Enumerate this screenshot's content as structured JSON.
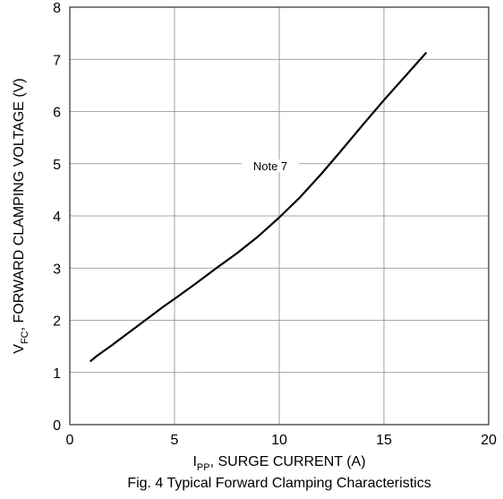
{
  "chart_data": {
    "type": "line",
    "title": "",
    "caption": "Fig. 4 Typical Forward Clamping Characteristics",
    "xlabel": {
      "main": "I",
      "sub": "PP",
      "rest": ",  SURGE CURRENT (A)"
    },
    "ylabel": {
      "main": "V",
      "sub": "FC",
      "rest": ", FORWARD CLAMPING VOLTAGE (V)"
    },
    "xlim": [
      0,
      20
    ],
    "ylim": [
      0,
      8
    ],
    "xticks": [
      0,
      5,
      10,
      15,
      20
    ],
    "yticks": [
      0,
      1,
      2,
      3,
      4,
      5,
      6,
      7,
      8
    ],
    "grid": true,
    "annotation": "Note 7",
    "series": [
      {
        "x": [
          1.0,
          1.3,
          2.0,
          3.0,
          4.0,
          4.5,
          5.0,
          6.0,
          7.0,
          8.0,
          9.0,
          10.0,
          11.0,
          12.0,
          13.0,
          14.0,
          15.0,
          16.0,
          17.0
        ],
        "y": [
          1.22,
          1.32,
          1.52,
          1.82,
          2.12,
          2.27,
          2.41,
          2.7,
          3.0,
          3.29,
          3.61,
          3.97,
          4.36,
          4.8,
          5.27,
          5.75,
          6.22,
          6.67,
          7.12
        ]
      }
    ]
  }
}
